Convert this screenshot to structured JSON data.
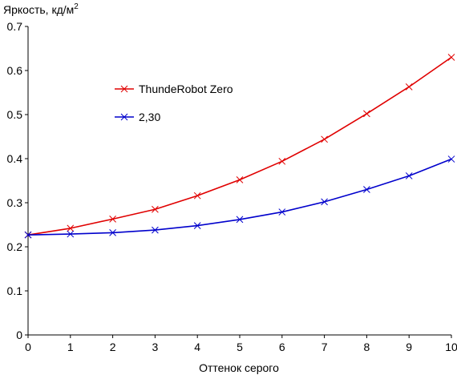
{
  "chart_data": {
    "type": "line",
    "ylabel": "Яркость, кд/м",
    "ylabel_sup": "2",
    "xlabel": "Оттенок серого",
    "xlim": [
      0,
      10
    ],
    "ylim": [
      0,
      0.7
    ],
    "x_ticks": [
      "0",
      "1",
      "2",
      "3",
      "4",
      "5",
      "6",
      "7",
      "8",
      "9",
      "10"
    ],
    "y_ticks": [
      "0",
      "0.1",
      "0.2",
      "0.3",
      "0.4",
      "0.5",
      "0.6",
      "0.7"
    ],
    "x_tick_values": [
      0,
      1,
      2,
      3,
      4,
      5,
      6,
      7,
      8,
      9,
      10
    ],
    "y_tick_values": [
      0,
      0.1,
      0.2,
      0.3,
      0.4,
      0.5,
      0.6,
      0.7
    ],
    "grid": false,
    "legend_position": "upper-left-inside",
    "x": [
      0,
      1,
      2,
      3,
      4,
      5,
      6,
      7,
      8,
      9,
      10
    ],
    "series": [
      {
        "name": "ThundeRobot Zero",
        "color": "#e00000",
        "marker": "x",
        "values": [
          0.227,
          0.242,
          0.263,
          0.285,
          0.316,
          0.352,
          0.394,
          0.444,
          0.502,
          0.563,
          0.63
        ]
      },
      {
        "name": "2,30",
        "color": "#0000cc",
        "marker": "x",
        "values": [
          0.227,
          0.229,
          0.232,
          0.238,
          0.248,
          0.262,
          0.279,
          0.302,
          0.33,
          0.361,
          0.399
        ]
      }
    ]
  }
}
